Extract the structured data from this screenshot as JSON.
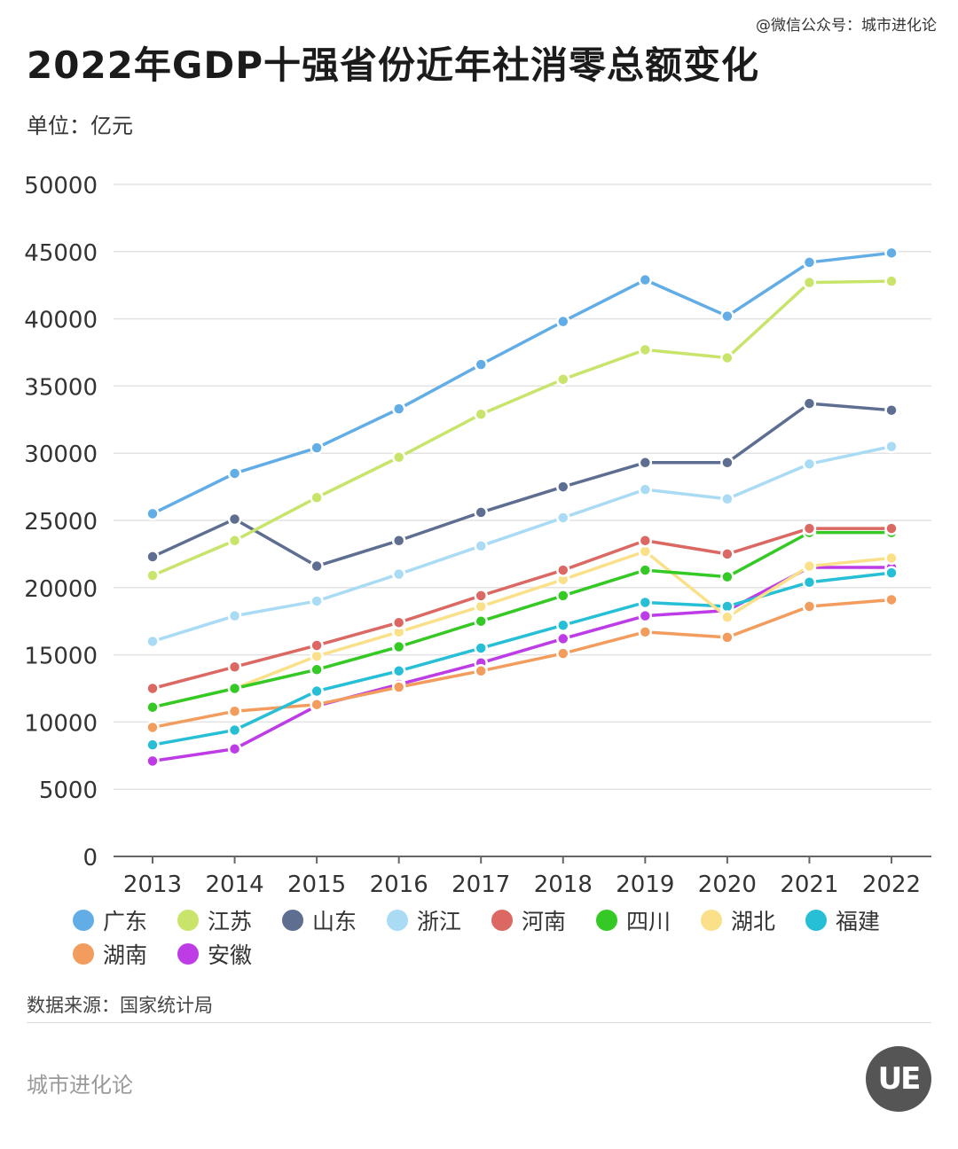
{
  "watermark": "@微信公众号：城市进化论",
  "title": "2022年GDP十强省份近年社消零总额变化",
  "unit": "单位：亿元",
  "source": "数据来源：国家统计局",
  "brand": "城市进化论",
  "logo_text": "UE",
  "chart_data": {
    "type": "line",
    "x": [
      "2013",
      "2014",
      "2015",
      "2016",
      "2017",
      "2018",
      "2019",
      "2020",
      "2021",
      "2022"
    ],
    "ylim": [
      0,
      50000
    ],
    "yticks": [
      0,
      5000,
      10000,
      15000,
      20000,
      25000,
      30000,
      35000,
      40000,
      45000,
      50000
    ],
    "grid": true,
    "legend_position": "bottom",
    "series": [
      {
        "name": "广东",
        "color": "#62ADE5",
        "values": [
          25500,
          28500,
          30400,
          33300,
          36600,
          39800,
          42900,
          40200,
          44200,
          44900
        ]
      },
      {
        "name": "江苏",
        "color": "#C8E46A",
        "values": [
          20900,
          23500,
          26700,
          29700,
          32900,
          35500,
          37700,
          37100,
          42700,
          42800
        ]
      },
      {
        "name": "山东",
        "color": "#5D6E91",
        "values": [
          22300,
          25100,
          21600,
          23500,
          25600,
          27500,
          29300,
          29300,
          33700,
          33200
        ]
      },
      {
        "name": "浙江",
        "color": "#A9DBF5",
        "values": [
          16000,
          17900,
          19000,
          21000,
          23100,
          25200,
          27300,
          26600,
          29200,
          30500
        ]
      },
      {
        "name": "河南",
        "color": "#DB6863",
        "values": [
          12500,
          14100,
          15700,
          17400,
          19400,
          21300,
          23500,
          22500,
          24400,
          24400
        ]
      },
      {
        "name": "四川",
        "color": "#34C924",
        "values": [
          11100,
          12500,
          13900,
          15600,
          17500,
          19400,
          21300,
          20800,
          24100,
          24100
        ]
      },
      {
        "name": "湖北",
        "color": "#F9E089",
        "values": [
          11100,
          12500,
          14900,
          16700,
          18600,
          20600,
          22700,
          17800,
          21600,
          22200
        ]
      },
      {
        "name": "福建",
        "color": "#27BFD6",
        "values": [
          8300,
          9400,
          12300,
          13800,
          15500,
          17200,
          18900,
          18600,
          20400,
          21100
        ]
      },
      {
        "name": "湖南",
        "color": "#F29C5E",
        "values": [
          9600,
          10800,
          11300,
          12600,
          13800,
          15100,
          16700,
          16300,
          18600,
          19100
        ]
      },
      {
        "name": "安徽",
        "color": "#BE3CE6",
        "values": [
          7100,
          8000,
          11200,
          12800,
          14400,
          16200,
          17900,
          18300,
          21500,
          21500
        ]
      }
    ]
  }
}
